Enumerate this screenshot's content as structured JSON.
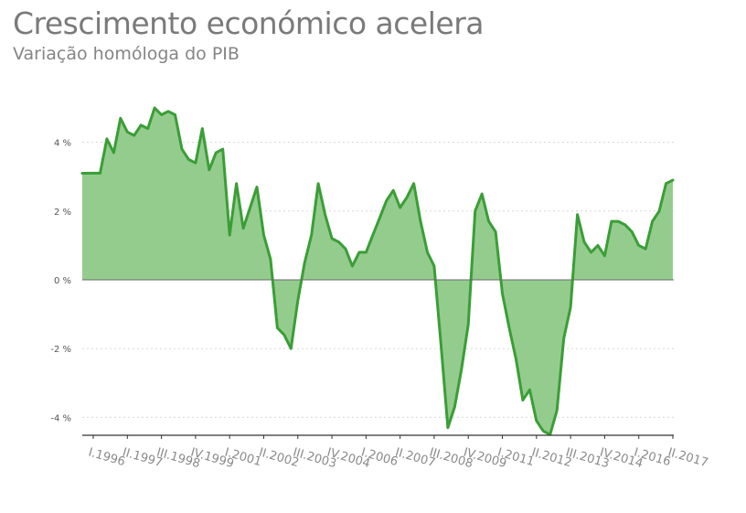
{
  "header": {
    "title": "Crescimento económico acelera",
    "subtitle": "Variação homóloga do PIB"
  },
  "colors": {
    "line": "#3a9e36",
    "area": "#94cc8e",
    "grid": "#d8d8d8",
    "axis": "#333333"
  },
  "chart_data": {
    "type": "area",
    "title": "Crescimento económico acelera",
    "subtitle": "Variação homóloga do PIB",
    "xlabel": "",
    "ylabel": "",
    "ylim": [
      -4.5,
      5.1
    ],
    "yticks": [
      {
        "value": 4,
        "label": "4 %"
      },
      {
        "value": 2,
        "label": "2 %"
      },
      {
        "value": 0,
        "label": "0 %"
      },
      {
        "value": -2,
        "label": "-2 %"
      },
      {
        "value": -4,
        "label": "-4 %"
      }
    ],
    "xtick_labels": [
      {
        "index": 0,
        "label": "I.1996"
      },
      {
        "index": 5,
        "label": "II.1997"
      },
      {
        "index": 10,
        "label": "III.1998"
      },
      {
        "index": 15,
        "label": "IV.1999"
      },
      {
        "index": 20,
        "label": "I.2001"
      },
      {
        "index": 25,
        "label": "II.2002"
      },
      {
        "index": 30,
        "label": "III.2003"
      },
      {
        "index": 35,
        "label": "IV.2004"
      },
      {
        "index": 40,
        "label": "I.2006"
      },
      {
        "index": 45,
        "label": "II.2007"
      },
      {
        "index": 50,
        "label": "III.2008"
      },
      {
        "index": 55,
        "label": "IV.2009"
      },
      {
        "index": 60,
        "label": "I.2011"
      },
      {
        "index": 65,
        "label": "II.2012"
      },
      {
        "index": 70,
        "label": "III.2013"
      },
      {
        "index": 75,
        "label": "IV.2014"
      },
      {
        "index": 80,
        "label": "I.2016"
      },
      {
        "index": 85,
        "label": "II.2017"
      }
    ],
    "series": [
      {
        "values": [
          3.1,
          3.1,
          4.1,
          3.7,
          4.7,
          4.3,
          4.2,
          4.5,
          4.4,
          5.0,
          4.8,
          4.9,
          4.8,
          3.8,
          3.5,
          3.4,
          4.4,
          3.2,
          3.7,
          3.8,
          1.3,
          2.8,
          1.5,
          2.1,
          2.7,
          1.3,
          0.6,
          -1.4,
          -1.6,
          -2.0,
          -0.6,
          0.5,
          1.3,
          2.8,
          1.9,
          1.2,
          1.1,
          0.9,
          0.4,
          0.8,
          0.8,
          1.3,
          1.8,
          2.3,
          2.6,
          2.1,
          2.4,
          2.8,
          1.7,
          0.8,
          0.4,
          -1.9,
          -4.3,
          -3.7,
          -2.6,
          -1.3,
          2.0,
          2.5,
          1.7,
          1.4,
          -0.4,
          -1.4,
          -2.3,
          -3.5,
          -3.2,
          -4.1,
          -4.4,
          -4.5,
          -3.8,
          -1.7,
          -0.8,
          1.9,
          1.1,
          0.8,
          1.0,
          0.7,
          1.7,
          1.7,
          1.6,
          1.4,
          1.0,
          0.9,
          1.7,
          2.0,
          2.8,
          2.9
        ]
      }
    ]
  }
}
